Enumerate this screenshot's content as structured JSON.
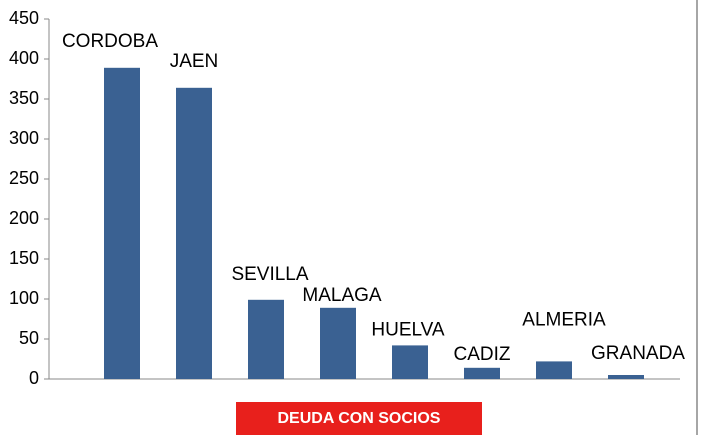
{
  "chart_data": {
    "type": "bar",
    "x_label": "DEUDA CON SOCIOS",
    "categories": [
      "CORDOBA",
      "JAEN",
      "SEVILLA",
      "MALAGA",
      "HUELVA",
      "CADIZ",
      "ALMERIA",
      "GRANADA"
    ],
    "values": [
      389,
      364,
      99,
      89,
      42,
      14,
      22,
      5
    ],
    "color": "#3a6192",
    "ylim": [
      0,
      450
    ],
    "yticks": [
      0,
      50,
      100,
      150,
      200,
      250,
      300,
      350,
      400,
      450
    ],
    "x_label_color": "#e8201c"
  }
}
